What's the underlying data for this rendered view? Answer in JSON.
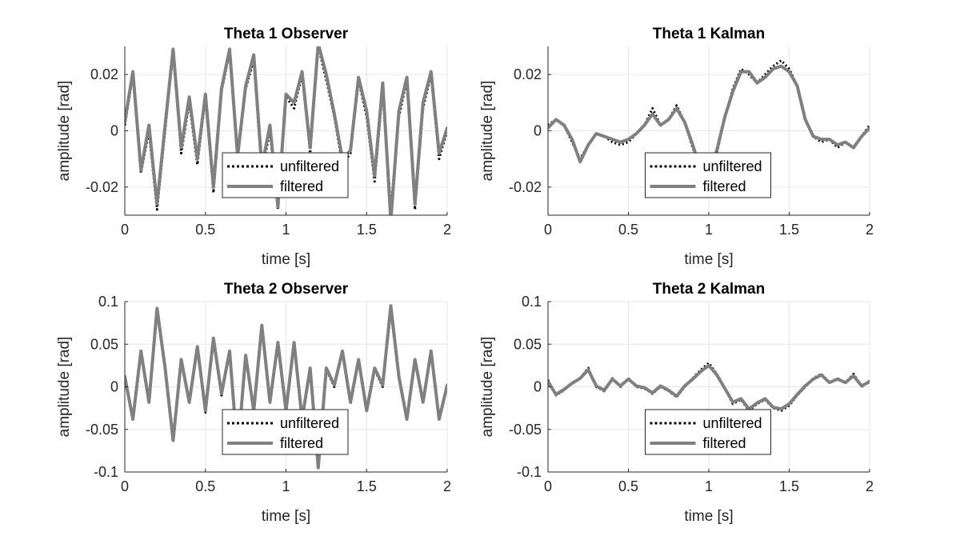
{
  "chart_data": [
    {
      "type": "line",
      "title": "Theta 1 Observer",
      "xlabel": "time [s]",
      "ylabel": "amplitude [rad]",
      "xlim": [
        0,
        2
      ],
      "ylim": [
        -0.03,
        0.03
      ],
      "xticks": [
        0,
        0.5,
        1,
        1.5,
        2
      ],
      "xtick_labels": [
        "0",
        "0.5",
        "1",
        "1.5",
        "2"
      ],
      "yticks": [
        -0.02,
        0,
        0.02
      ],
      "ytick_labels": [
        "-0.02",
        "0",
        "0.02"
      ],
      "grid": true,
      "legend_position": "bottom-center",
      "x": [
        0,
        0.05,
        0.1,
        0.15,
        0.2,
        0.25,
        0.3,
        0.35,
        0.4,
        0.45,
        0.5,
        0.55,
        0.6,
        0.65,
        0.7,
        0.75,
        0.8,
        0.85,
        0.9,
        0.95,
        1.0,
        1.05,
        1.1,
        1.15,
        1.2,
        1.25,
        1.3,
        1.35,
        1.4,
        1.45,
        1.5,
        1.55,
        1.6,
        1.65,
        1.7,
        1.75,
        1.8,
        1.85,
        1.9,
        1.95,
        2.0
      ],
      "series": [
        {
          "name": "unfiltered",
          "color": "#000000",
          "style": "dotted",
          "values": [
            0.002,
            0.02,
            -0.015,
            0.0,
            -0.028,
            0.0,
            0.028,
            -0.008,
            0.01,
            -0.012,
            0.012,
            -0.022,
            0.014,
            0.028,
            -0.01,
            0.015,
            0.025,
            -0.015,
            0.0,
            -0.028,
            0.012,
            0.008,
            0.02,
            -0.008,
            0.03,
            0.018,
            0.005,
            -0.012,
            -0.008,
            0.018,
            0.005,
            -0.018,
            0.015,
            -0.028,
            0.005,
            0.018,
            -0.028,
            0.008,
            0.02,
            -0.01,
            0.0
          ]
        },
        {
          "name": "filtered",
          "color": "#808080",
          "style": "solid",
          "values": [
            0.003,
            0.021,
            -0.014,
            0.002,
            -0.026,
            0.002,
            0.029,
            -0.006,
            0.012,
            -0.01,
            0.013,
            -0.02,
            0.015,
            0.029,
            -0.009,
            0.016,
            0.027,
            -0.013,
            0.002,
            -0.027,
            0.013,
            0.01,
            0.021,
            -0.006,
            0.031,
            0.02,
            0.006,
            -0.01,
            -0.007,
            0.019,
            0.007,
            -0.016,
            0.017,
            -0.032,
            0.007,
            0.019,
            -0.026,
            0.01,
            0.021,
            -0.008,
            0.001
          ]
        }
      ]
    },
    {
      "type": "line",
      "title": "Theta 1 Kalman",
      "xlabel": "time [s]",
      "ylabel": "amplitude [rad]",
      "xlim": [
        0,
        2
      ],
      "ylim": [
        -0.03,
        0.03
      ],
      "xticks": [
        0,
        0.5,
        1,
        1.5,
        2
      ],
      "xtick_labels": [
        "0",
        "0.5",
        "1",
        "1.5",
        "2"
      ],
      "yticks": [
        -0.02,
        0,
        0.02
      ],
      "ytick_labels": [
        "-0.02",
        "0",
        "0.02"
      ],
      "grid": true,
      "legend_position": "bottom-center",
      "x": [
        0,
        0.05,
        0.1,
        0.15,
        0.2,
        0.25,
        0.3,
        0.35,
        0.4,
        0.45,
        0.5,
        0.55,
        0.6,
        0.65,
        0.7,
        0.75,
        0.8,
        0.85,
        0.9,
        0.95,
        1.0,
        1.05,
        1.1,
        1.15,
        1.2,
        1.25,
        1.3,
        1.35,
        1.4,
        1.45,
        1.5,
        1.55,
        1.6,
        1.65,
        1.7,
        1.75,
        1.8,
        1.85,
        1.9,
        1.95,
        2.0
      ],
      "series": [
        {
          "name": "unfiltered",
          "color": "#000000",
          "style": "dotted",
          "values": [
            0.002,
            0.004,
            0.002,
            -0.004,
            -0.01,
            -0.005,
            -0.001,
            -0.002,
            -0.004,
            -0.005,
            -0.004,
            -0.001,
            0.002,
            0.008,
            0.002,
            0.004,
            0.009,
            0.003,
            -0.006,
            -0.014,
            -0.013,
            -0.008,
            0.005,
            0.015,
            0.022,
            0.02,
            0.017,
            0.02,
            0.023,
            0.025,
            0.022,
            0.016,
            0.004,
            -0.002,
            -0.004,
            -0.003,
            -0.006,
            -0.004,
            -0.006,
            -0.002,
            0.002
          ]
        },
        {
          "name": "filtered",
          "color": "#808080",
          "style": "solid",
          "values": [
            0.001,
            0.004,
            0.002,
            -0.003,
            -0.011,
            -0.005,
            -0.001,
            -0.002,
            -0.003,
            -0.004,
            -0.003,
            -0.001,
            0.002,
            0.006,
            0.002,
            0.004,
            0.008,
            0.003,
            -0.005,
            -0.014,
            -0.013,
            -0.007,
            0.005,
            0.014,
            0.021,
            0.021,
            0.017,
            0.019,
            0.022,
            0.023,
            0.021,
            0.016,
            0.004,
            -0.002,
            -0.003,
            -0.003,
            -0.005,
            -0.004,
            -0.006,
            -0.002,
            0.001
          ]
        }
      ]
    },
    {
      "type": "line",
      "title": "Theta 2 Observer",
      "xlabel": "time [s]",
      "ylabel": "amplitude [rad]",
      "xlim": [
        0,
        2
      ],
      "ylim": [
        -0.1,
        0.1
      ],
      "xticks": [
        0,
        0.5,
        1,
        1.5,
        2
      ],
      "xtick_labels": [
        "0",
        "0.5",
        "1",
        "1.5",
        "2"
      ],
      "yticks": [
        -0.1,
        -0.05,
        0,
        0.05,
        0.1
      ],
      "ytick_labels": [
        "-0.1",
        "-0.05",
        "0",
        "0.05",
        "0.1"
      ],
      "grid": true,
      "legend_position": "bottom-center",
      "x": [
        0,
        0.05,
        0.1,
        0.15,
        0.2,
        0.25,
        0.3,
        0.35,
        0.4,
        0.45,
        0.5,
        0.55,
        0.6,
        0.65,
        0.7,
        0.75,
        0.8,
        0.85,
        0.9,
        0.95,
        1.0,
        1.05,
        1.1,
        1.15,
        1.2,
        1.25,
        1.3,
        1.35,
        1.4,
        1.45,
        1.5,
        1.55,
        1.6,
        1.65,
        1.7,
        1.75,
        1.8,
        1.85,
        1.9,
        1.95,
        2.0
      ],
      "series": [
        {
          "name": "unfiltered",
          "color": "#000000",
          "style": "dotted",
          "values": [
            0.01,
            -0.04,
            0.04,
            -0.02,
            0.09,
            0.02,
            -0.065,
            0.03,
            -0.02,
            0.045,
            -0.03,
            0.055,
            -0.01,
            0.04,
            -0.08,
            0.035,
            -0.03,
            0.07,
            -0.02,
            0.05,
            -0.03,
            0.05,
            -0.04,
            0.02,
            -0.09,
            0.02,
            0.0,
            0.04,
            -0.02,
            0.03,
            -0.03,
            0.02,
            0.0,
            0.09,
            0.01,
            -0.04,
            0.03,
            -0.02,
            0.04,
            -0.04,
            0.0
          ]
        },
        {
          "name": "filtered",
          "color": "#808080",
          "style": "solid",
          "values": [
            0.012,
            -0.038,
            0.042,
            -0.018,
            0.092,
            0.022,
            -0.063,
            0.032,
            -0.018,
            0.047,
            -0.028,
            0.057,
            -0.008,
            0.042,
            -0.078,
            0.037,
            -0.028,
            0.072,
            -0.018,
            0.052,
            -0.028,
            0.052,
            -0.038,
            0.022,
            -0.095,
            0.022,
            0.002,
            0.042,
            -0.018,
            0.032,
            -0.028,
            0.022,
            0.002,
            0.095,
            0.012,
            -0.038,
            0.032,
            -0.018,
            0.042,
            -0.038,
            0.002
          ]
        }
      ]
    },
    {
      "type": "line",
      "title": "Theta 2 Kalman",
      "xlabel": "time [s]",
      "ylabel": "amplitude [rad]",
      "xlim": [
        0,
        2
      ],
      "ylim": [
        -0.1,
        0.1
      ],
      "xticks": [
        0,
        0.5,
        1,
        1.5,
        2
      ],
      "xtick_labels": [
        "0",
        "0.5",
        "1",
        "1.5",
        "2"
      ],
      "yticks": [
        -0.1,
        -0.05,
        0,
        0.05,
        0.1
      ],
      "ytick_labels": [
        "-0.1",
        "-0.05",
        "0",
        "0.05",
        "0.1"
      ],
      "grid": true,
      "legend_position": "bottom-center",
      "x": [
        0,
        0.05,
        0.1,
        0.15,
        0.2,
        0.25,
        0.3,
        0.35,
        0.4,
        0.45,
        0.5,
        0.55,
        0.6,
        0.65,
        0.7,
        0.75,
        0.8,
        0.85,
        0.9,
        0.95,
        1.0,
        1.05,
        1.1,
        1.15,
        1.2,
        1.25,
        1.3,
        1.35,
        1.4,
        1.45,
        1.5,
        1.55,
        1.6,
        1.65,
        1.7,
        1.75,
        1.8,
        1.85,
        1.9,
        1.95,
        2.0
      ],
      "series": [
        {
          "name": "unfiltered",
          "color": "#000000",
          "style": "dotted",
          "values": [
            0.008,
            -0.01,
            -0.004,
            0.005,
            0.01,
            0.022,
            0.0,
            -0.005,
            0.01,
            0.0,
            0.01,
            0.0,
            -0.002,
            -0.008,
            0.0,
            -0.005,
            -0.012,
            0.0,
            0.01,
            0.02,
            0.028,
            0.015,
            -0.002,
            -0.02,
            -0.015,
            -0.028,
            -0.02,
            -0.015,
            -0.025,
            -0.028,
            -0.022,
            -0.01,
            0.0,
            0.01,
            0.015,
            0.005,
            0.01,
            0.005,
            0.015,
            0.0,
            0.007
          ]
        },
        {
          "name": "filtered",
          "color": "#808080",
          "style": "solid",
          "values": [
            0.006,
            -0.009,
            -0.003,
            0.004,
            0.01,
            0.02,
            0.001,
            -0.004,
            0.009,
            0.001,
            0.009,
            0.001,
            -0.001,
            -0.007,
            0.001,
            -0.004,
            -0.011,
            0.001,
            0.009,
            0.018,
            0.025,
            0.014,
            -0.002,
            -0.018,
            -0.014,
            -0.026,
            -0.019,
            -0.014,
            -0.024,
            -0.026,
            -0.02,
            -0.009,
            0.001,
            0.009,
            0.014,
            0.005,
            0.009,
            0.005,
            0.013,
            0.001,
            0.006
          ]
        }
      ]
    }
  ]
}
